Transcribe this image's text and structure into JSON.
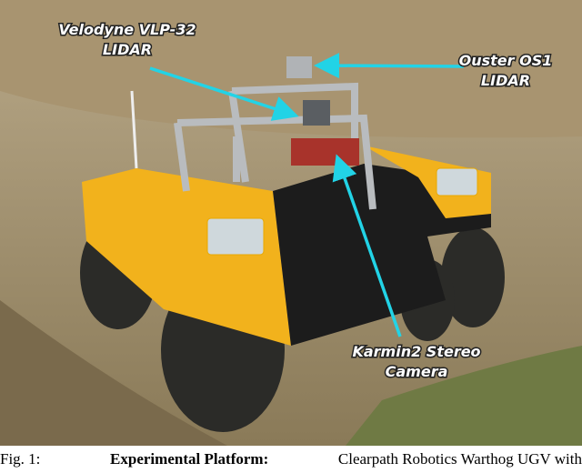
{
  "figure": {
    "annotations": [
      {
        "lines": [
          "Velodyne VLP-32",
          "LIDAR"
        ]
      },
      {
        "lines": [
          "Ouster OS1",
          "LIDAR"
        ]
      },
      {
        "lines": [
          "Karmin2 Stereo",
          "Camera"
        ]
      }
    ]
  },
  "caption": {
    "label": "Fig. 1:",
    "heading": "Experimental Platform:",
    "text": "Clearpath Robotics Warthog UGV with"
  }
}
